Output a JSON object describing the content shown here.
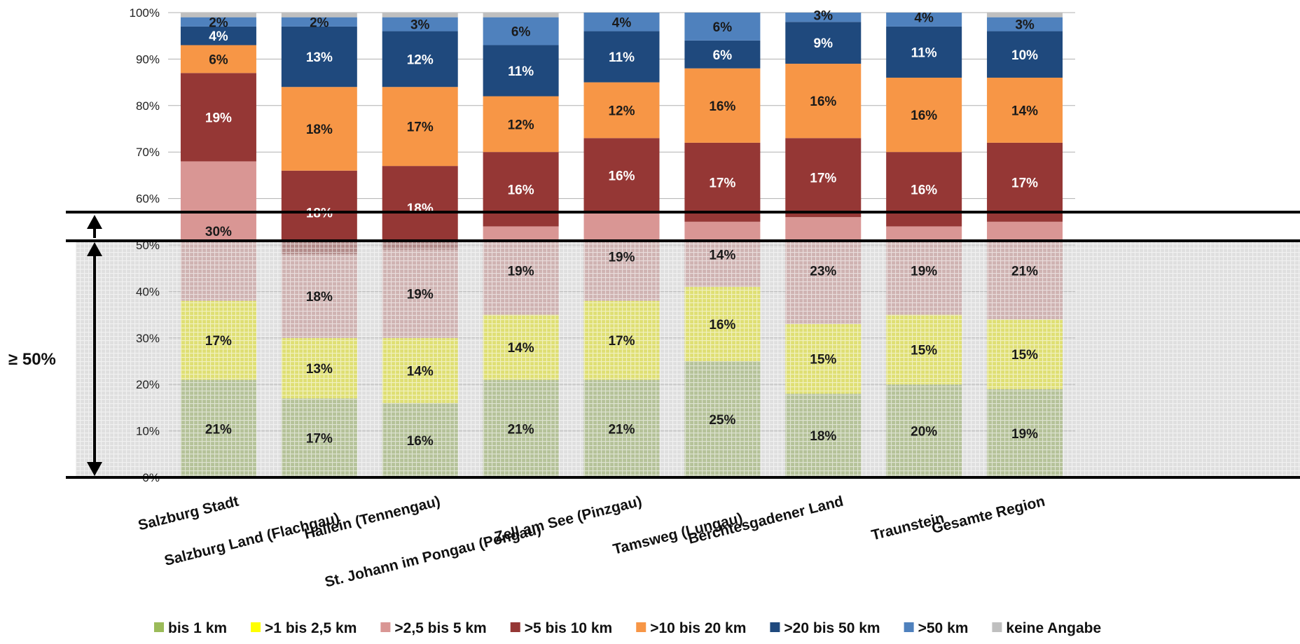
{
  "chart_data": {
    "type": "bar",
    "stacked": true,
    "title": "",
    "xlabel": "",
    "ylabel": "",
    "ylim": [
      0,
      100
    ],
    "y_ticks": [
      "0%",
      "10%",
      "20%",
      "30%",
      "40%",
      "50%",
      "60%",
      "70%",
      "80%",
      "90%",
      "100%"
    ],
    "grid": true,
    "legend_position": "bottom",
    "categories": [
      "Salzburg Stadt",
      "Salzburg Land (Flachgau)",
      "Hallein (Tennengau)",
      "St. Johann im Pongau (Pongau)",
      "Zell am See (Pinzgau)",
      "Tamsweg (Lungau)",
      "Berchtesgadener Land",
      "Traunstein",
      "Gesamte Region"
    ],
    "series": [
      {
        "name": "bis 1 km",
        "color": "#9bbb59",
        "values": [
          21,
          17,
          16,
          21,
          21,
          25,
          18,
          20,
          19
        ],
        "labels": [
          "21%",
          "17%",
          "16%",
          "21%",
          "21%",
          "25%",
          "18%",
          "20%",
          "19%"
        ]
      },
      {
        "name": ">1 bis 2,5 km",
        "color": "#ffff00",
        "values": [
          17,
          13,
          14,
          14,
          17,
          16,
          15,
          15,
          15
        ],
        "labels": [
          "17%",
          "13%",
          "14%",
          "14%",
          "17%",
          "16%",
          "15%",
          "15%",
          "15%"
        ]
      },
      {
        "name": ">2,5 bis 5 km",
        "color": "#d99694",
        "values": [
          30,
          18,
          19,
          19,
          19,
          14,
          23,
          19,
          21
        ],
        "labels": [
          "30%",
          "18%",
          "19%",
          "19%",
          "19%",
          "14%",
          "23%",
          "19%",
          "21%"
        ]
      },
      {
        "name": ">5 bis 10 km",
        "color": "#953735",
        "values": [
          19,
          18,
          18,
          16,
          16,
          17,
          17,
          16,
          17
        ],
        "labels": [
          "19%",
          "18%",
          "18%",
          "16%",
          "16%",
          "17%",
          "17%",
          "16%",
          "17%"
        ]
      },
      {
        "name": ">10 bis 20 km",
        "color": "#f79646",
        "values": [
          6,
          18,
          17,
          12,
          12,
          16,
          16,
          16,
          14
        ],
        "labels": [
          "6%",
          "18%",
          "17%",
          "12%",
          "12%",
          "16%",
          "16%",
          "16%",
          "14%"
        ]
      },
      {
        "name": ">20 bis 50 km",
        "color": "#1f497d",
        "values": [
          4,
          13,
          12,
          11,
          11,
          6,
          9,
          11,
          10
        ],
        "labels": [
          "4%",
          "13%",
          "12%",
          "11%",
          "11%",
          "6%",
          "9%",
          "11%",
          "10%"
        ]
      },
      {
        "name": ">50 km",
        "color": "#4f81bd",
        "values": [
          2,
          2,
          3,
          6,
          4,
          6,
          3,
          4,
          3
        ],
        "labels": [
          "2%",
          "2%",
          "3%",
          "6%",
          "4%",
          "6%",
          "3%",
          "4%",
          "3%"
        ]
      },
      {
        "name": "keine Angabe",
        "color": "#bfbfbf",
        "values": [
          1,
          1,
          1,
          1,
          1,
          0.5,
          1,
          1,
          1
        ],
        "labels": [
          "",
          "",
          "",
          "",
          "",
          "",
          "",
          "",
          ""
        ]
      }
    ],
    "annotations": {
      "bracket_label": "≥ 50%",
      "highlighted_range": [
        0,
        50
      ]
    }
  }
}
